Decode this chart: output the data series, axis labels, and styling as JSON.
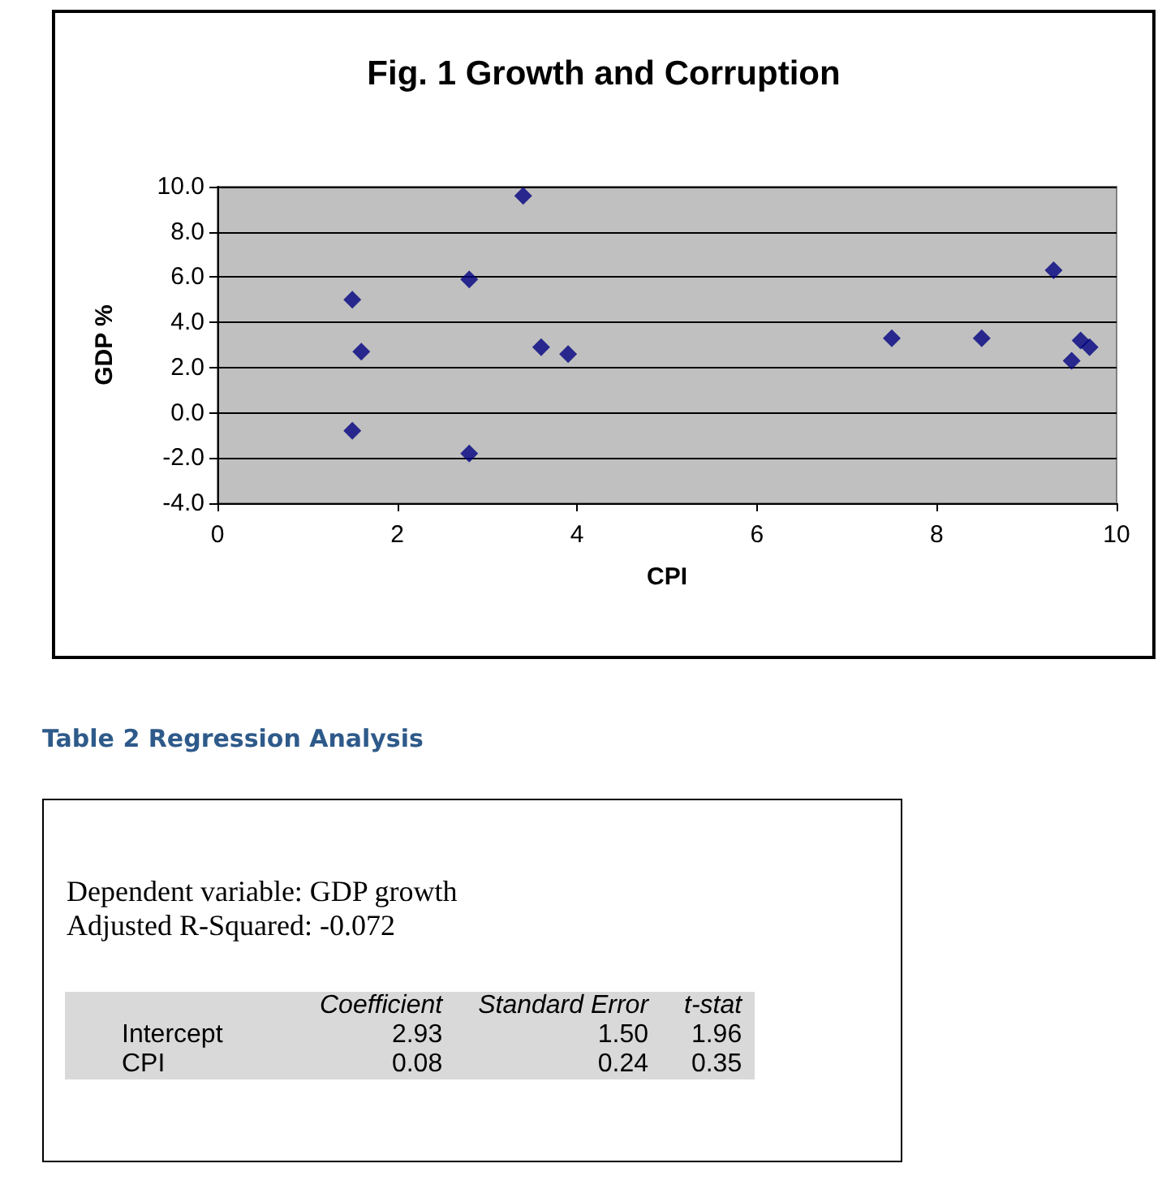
{
  "chart_data": [
    {
      "type": "scatter",
      "title": "Fig. 1 Growth and Corruption",
      "xlabel": "CPI",
      "ylabel": "GDP %",
      "color": "#000080",
      "marker": "diamond",
      "grid": "y",
      "x": [
        1.5,
        1.6,
        1.5,
        2.8,
        2.8,
        3.4,
        3.6,
        3.9,
        7.5,
        8.5,
        9.3,
        9.5,
        9.6,
        9.7
      ],
      "values": [
        5.0,
        2.7,
        -0.8,
        5.9,
        -1.8,
        9.6,
        2.9,
        2.6,
        3.3,
        3.3,
        6.3,
        2.3,
        3.2,
        2.9
      ],
      "xlim": [
        0,
        10
      ],
      "xticks": [
        0,
        2,
        4,
        6,
        8,
        10
      ],
      "ylim": [
        -4,
        10
      ],
      "yticks": [
        {
          "value": -4,
          "label": "-4.0"
        },
        {
          "value": -2,
          "label": "-2.0"
        },
        {
          "value": 0,
          "label": "0.0"
        },
        {
          "value": 2,
          "label": "2.0"
        },
        {
          "value": 4,
          "label": "4.0"
        },
        {
          "value": 6,
          "label": "6.0"
        },
        {
          "value": 8,
          "label": "8.0"
        },
        {
          "value": 10,
          "label": "10.0"
        }
      ]
    },
    {
      "type": "other",
      "title": "Table 2 Regression Analysis",
      "annotations": [
        "Dependent variable: GDP growth",
        "Adjusted R-Squared:  -0.072",
        "Coefficient",
        "Standard Error",
        "t-stat",
        "Intercept",
        "2.93",
        "1.50",
        "1.96",
        "CPI",
        "0.08",
        "0.24",
        "0.35"
      ]
    }
  ]
}
